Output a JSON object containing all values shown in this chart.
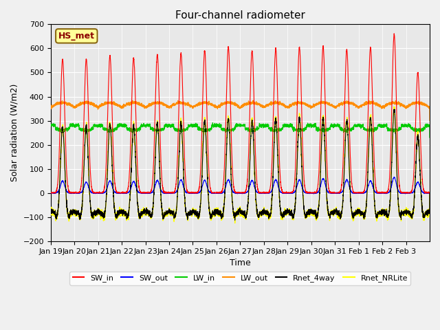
{
  "title": "Four-channel radiometer",
  "xlabel": "Time",
  "ylabel": "Solar radiation (W/m2)",
  "ylim": [
    -200,
    700
  ],
  "yticks": [
    -200,
    -100,
    0,
    100,
    200,
    300,
    400,
    500,
    600,
    700
  ],
  "annotation_text": "HS_met",
  "x_tick_labels": [
    "Jan 19",
    "Jan 20",
    "Jan 21",
    "Jan 22",
    "Jan 23",
    "Jan 24",
    "Jan 25",
    "Jan 26",
    "Jan 27",
    "Jan 28",
    "Jan 29",
    "Jan 30",
    "Jan 31",
    "Feb 1",
    "Feb 2",
    "Feb 3"
  ],
  "x_tick_positions": [
    0,
    1,
    2,
    3,
    4,
    5,
    6,
    7,
    8,
    9,
    10,
    11,
    12,
    13,
    14,
    15
  ],
  "legend": [
    {
      "label": "SW_in",
      "color": "#ff0000"
    },
    {
      "label": "SW_out",
      "color": "#0000ff"
    },
    {
      "label": "LW_in",
      "color": "#00cc00"
    },
    {
      "label": "LW_out",
      "color": "#ff8c00"
    },
    {
      "label": "Rnet_4way",
      "color": "#000000"
    },
    {
      "label": "Rnet_NRLite",
      "color": "#ffff00"
    }
  ],
  "plot_bg_color": "#e8e8e8",
  "fig_bg_color": "#f0f0f0",
  "n_days": 16,
  "pts_per_day": 288,
  "peak_sw_in": [
    555,
    555,
    570,
    560,
    575,
    580,
    590,
    605,
    590,
    600,
    605,
    610,
    595,
    605,
    660,
    500
  ],
  "peak_sw_out": [
    50,
    45,
    50,
    48,
    52,
    55,
    53,
    55,
    52,
    55,
    55,
    60,
    55,
    50,
    65,
    45
  ]
}
